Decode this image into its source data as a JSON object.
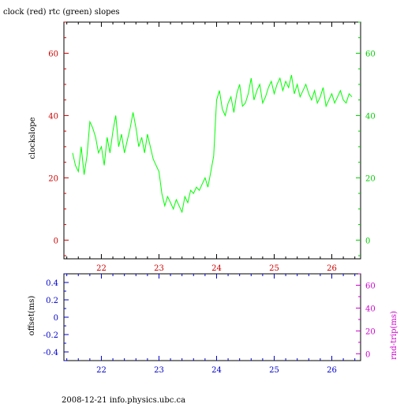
{
  "title": "clock (red) rtc (green) slopes",
  "footer": "2008-12-21 info.physics.ubc.ca",
  "colors": {
    "red_axis": "#cc0000",
    "green_axis": "#00cc00",
    "trace": "#00ff00",
    "blue_axis": "#0000cc",
    "magenta_axis": "#cc00cc",
    "frame": "#000000"
  },
  "chart_data": [
    {
      "type": "line",
      "title": "clock (red) rtc (green) slopes",
      "ylabel": "clockslope",
      "x_ticks": [
        "22",
        "23",
        "24",
        "25",
        "26"
      ],
      "xlim": [
        21.35,
        26.5
      ],
      "ylim": [
        -6,
        70
      ],
      "left_y_ticks": [
        "0",
        "20",
        "40",
        "60"
      ],
      "right_y_ticks": [
        "0",
        "20",
        "40",
        "60"
      ],
      "grid": false,
      "series": [
        {
          "color": "green",
          "x": [
            21.5,
            21.55,
            21.6,
            21.65,
            21.7,
            21.75,
            21.8,
            21.85,
            21.9,
            21.95,
            22.0,
            22.05,
            22.1,
            22.15,
            22.2,
            22.25,
            22.3,
            22.35,
            22.4,
            22.45,
            22.5,
            22.55,
            22.6,
            22.65,
            22.7,
            22.75,
            22.8,
            22.85,
            22.9,
            22.95,
            23.0,
            23.05,
            23.1,
            23.15,
            23.2,
            23.25,
            23.3,
            23.35,
            23.4,
            23.45,
            23.5,
            23.55,
            23.6,
            23.65,
            23.7,
            23.75,
            23.8,
            23.85,
            23.9,
            23.95,
            24.0,
            24.05,
            24.1,
            24.15,
            24.2,
            24.25,
            24.3,
            24.35,
            24.4,
            24.45,
            24.5,
            24.55,
            24.6,
            24.65,
            24.7,
            24.75,
            24.8,
            24.85,
            24.9,
            24.95,
            25.0,
            25.05,
            25.1,
            25.15,
            25.2,
            25.25,
            25.3,
            25.35,
            25.4,
            25.45,
            25.5,
            25.55,
            25.6,
            25.65,
            25.7,
            25.75,
            25.8,
            25.85,
            25.9,
            25.95,
            26.0,
            26.05,
            26.1,
            26.15,
            26.2,
            26.25,
            26.3,
            26.35
          ],
          "y": [
            28,
            24,
            22,
            30,
            21,
            27,
            38,
            36,
            33,
            28,
            30,
            24,
            33,
            28,
            35,
            40,
            30,
            34,
            28,
            32,
            36,
            41,
            36,
            30,
            33,
            28,
            34,
            30,
            26,
            24,
            22,
            15,
            11,
            14,
            12,
            10,
            13,
            11,
            9,
            14,
            12,
            16,
            15,
            17,
            16,
            18,
            20,
            17,
            22,
            27,
            45,
            48,
            42,
            40,
            44,
            46,
            41,
            47,
            50,
            43,
            44,
            47,
            52,
            45,
            48,
            50,
            44,
            46,
            49,
            51,
            47,
            50,
            52,
            48,
            51,
            49,
            53,
            47,
            50,
            46,
            48,
            50,
            47,
            45,
            48,
            44,
            46,
            49,
            43,
            45,
            47,
            44,
            46,
            48,
            45,
            44,
            47,
            46
          ]
        }
      ]
    },
    {
      "type": "line",
      "ylabel": "offset(ms)",
      "y2label": "rnd-trip(ms)",
      "x_ticks": [
        "22",
        "23",
        "24",
        "25",
        "26"
      ],
      "xlim": [
        21.35,
        26.5
      ],
      "ylim": [
        -0.5,
        0.5
      ],
      "left_y_ticks": [
        "0.4",
        "0.2",
        "0",
        "-0.2",
        "-0.4"
      ],
      "right_ylim": [
        -6,
        70
      ],
      "right_y_ticks": [
        "60",
        "40",
        "20",
        "0"
      ],
      "grid": false,
      "series": []
    }
  ]
}
